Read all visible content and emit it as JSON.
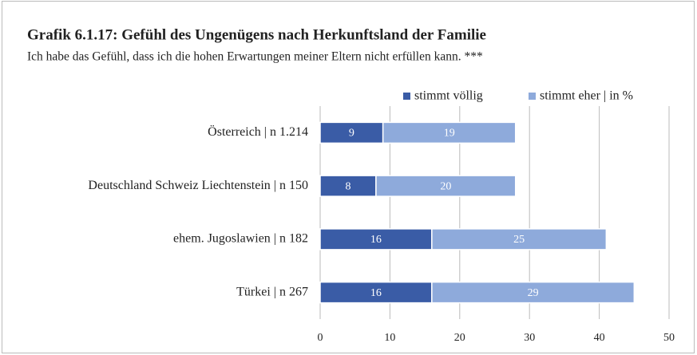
{
  "chart_data": {
    "type": "stacked-bar-horizontal",
    "title": "Grafik 6.1.17: Gefühl des Ungenügens nach Herkunftsland der Familie",
    "subtitle": "Ich habe das Gefühl, dass ich die hohen Erwartungen meiner Eltern nicht erfüllen kann. ***",
    "categories": [
      "Österreich | n 1.214",
      "Deutschland Schweiz Liechtenstein | n 150",
      "ehem. Jugoslawien | n 182",
      "Türkei | n 267"
    ],
    "series": [
      {
        "name": "stimmt völlig",
        "color": "#3a5ca6",
        "values": [
          9,
          8,
          16,
          16
        ]
      },
      {
        "name": "stimmt eher | in %",
        "color": "#8eaadb",
        "values": [
          19,
          20,
          25,
          29
        ]
      }
    ],
    "xlim": [
      0,
      50
    ],
    "xticks": [
      0,
      10,
      20,
      30,
      40,
      50
    ],
    "grid": true,
    "legend": "top-right"
  }
}
